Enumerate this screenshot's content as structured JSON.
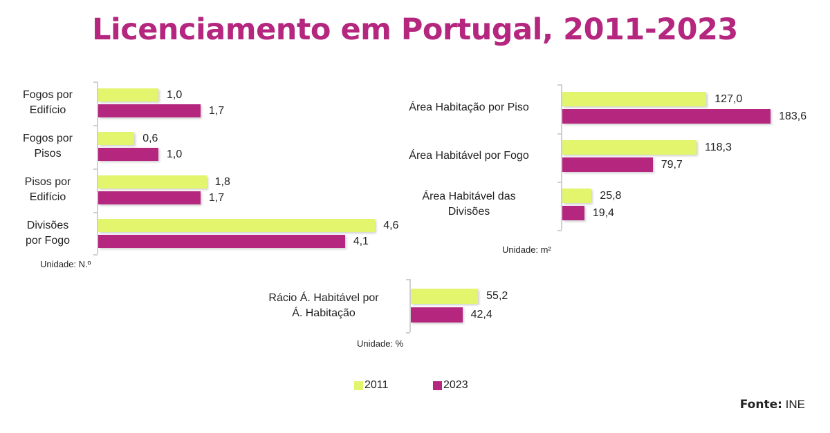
{
  "title": "Licenciamento em Portugal, 2011-2023",
  "colors": {
    "2011": "#e2f56c",
    "2023": "#b5267f",
    "title": "#b5267f"
  },
  "chart_data": [
    {
      "type": "bar",
      "orientation": "horizontal",
      "categories": [
        "Fogos por\nEdifício",
        "Fogos por\nPisos",
        "Pisos por\nEdifício",
        "Divisões\npor Fogo"
      ],
      "series": [
        {
          "name": "2011",
          "values": [
            1.0,
            0.6,
            1.8,
            4.6
          ],
          "labels": [
            "1,0",
            "0,6",
            "1,8",
            "4,6"
          ]
        },
        {
          "name": "2023",
          "values": [
            1.7,
            1.0,
            1.7,
            4.1
          ],
          "labels": [
            "1,7",
            "1,0",
            "1,7",
            "4,1"
          ]
        }
      ],
      "unit_label": "Unidade: N.º"
    },
    {
      "type": "bar",
      "orientation": "horizontal",
      "categories": [
        "Área Habitação por Piso",
        "Área Habitável por Fogo",
        "Área Habitável das\nDivisões"
      ],
      "series": [
        {
          "name": "2011",
          "values": [
            127.0,
            118.3,
            25.8
          ],
          "labels": [
            "127,0",
            "118,3",
            "25,8"
          ]
        },
        {
          "name": "2023",
          "values": [
            183.6,
            79.7,
            19.4
          ],
          "labels": [
            "183,6",
            "79,7",
            "19,4"
          ]
        }
      ],
      "unit_label": "Unidade: m²"
    },
    {
      "type": "bar",
      "orientation": "horizontal",
      "categories": [
        "Rácio Á. Habitável por\nÁ. Habitação"
      ],
      "series": [
        {
          "name": "2011",
          "values": [
            55.2
          ],
          "labels": [
            "55,2"
          ]
        },
        {
          "name": "2023",
          "values": [
            42.4
          ],
          "labels": [
            "42,4"
          ]
        }
      ],
      "unit_label": "Unidade: %"
    }
  ],
  "legend": {
    "items": [
      "2011",
      "2023"
    ],
    "placement": "bottom"
  },
  "source": {
    "label": "Fonte:",
    "value": "INE"
  }
}
